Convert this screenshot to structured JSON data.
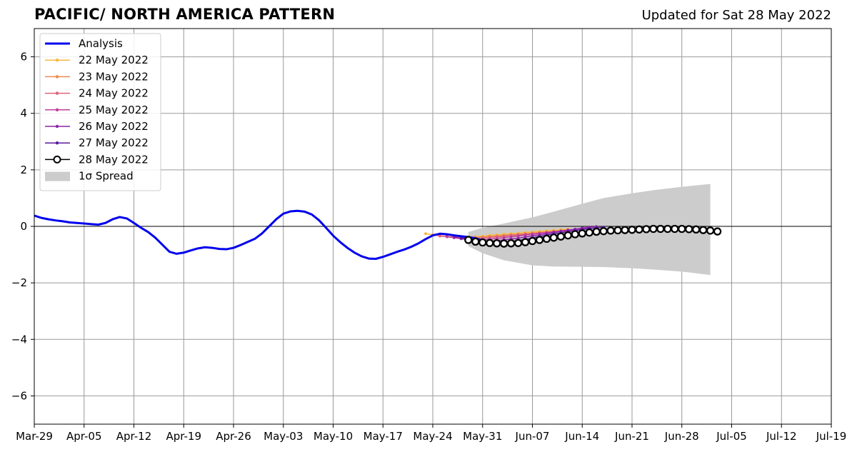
{
  "header": {
    "title": "PACIFIC/ NORTH AMERICA PATTERN",
    "updated": "Updated for Sat 28 May 2022"
  },
  "chart_data": {
    "type": "line",
    "title": "PACIFIC/ NORTH AMERICA PATTERN",
    "xlabel": "",
    "ylabel": "",
    "x_tick_labels": [
      "Mar-29",
      "Apr-05",
      "Apr-12",
      "Apr-19",
      "Apr-26",
      "May-03",
      "May-10",
      "May-17",
      "May-24",
      "May-31",
      "Jun-07",
      "Jun-14",
      "Jun-21",
      "Jun-28",
      "Jul-05",
      "Jul-12",
      "Jul-19"
    ],
    "y_ticks": [
      6,
      4,
      2,
      0,
      -2,
      -4,
      -6
    ],
    "y_tick_labels": [
      "6",
      "4",
      "2",
      "0",
      "−2",
      "−4",
      "−6"
    ],
    "xlim": [
      "2022-03-29",
      "2022-07-19"
    ],
    "ylim": [
      -7,
      7
    ],
    "grid": true,
    "legend_position": "top-left",
    "analysis": {
      "name": "Analysis",
      "color": "#0000ee",
      "start": "2022-03-29",
      "values": [
        0.38,
        0.3,
        0.25,
        0.21,
        0.18,
        0.14,
        0.12,
        0.1,
        0.08,
        0.06,
        0.12,
        0.25,
        0.33,
        0.28,
        0.12,
        -0.05,
        -0.2,
        -0.4,
        -0.65,
        -0.9,
        -0.97,
        -0.93,
        -0.85,
        -0.78,
        -0.74,
        -0.76,
        -0.8,
        -0.81,
        -0.76,
        -0.66,
        -0.55,
        -0.44,
        -0.25,
        0.0,
        0.25,
        0.45,
        0.53,
        0.55,
        0.52,
        0.42,
        0.22,
        -0.05,
        -0.33,
        -0.56,
        -0.76,
        -0.93,
        -1.06,
        -1.14,
        -1.15,
        -1.08,
        -0.99,
        -0.9,
        -0.82,
        -0.72,
        -0.6,
        -0.45,
        -0.32,
        -0.26,
        -0.28,
        -0.32,
        -0.35,
        -0.38,
        -0.42,
        -0.5,
        -0.62
      ]
    },
    "forecasts": [
      {
        "name": "22 May 2022",
        "color": "#f6b93b",
        "start": "2022-05-23",
        "values": [
          -0.26,
          -0.3,
          -0.34,
          -0.36,
          -0.37,
          -0.38,
          -0.38,
          -0.37,
          -0.35,
          -0.32,
          -0.3,
          -0.28,
          -0.26,
          -0.24,
          -0.22,
          -0.2,
          -0.18,
          -0.16,
          -0.14,
          -0.12,
          -0.1
        ]
      },
      {
        "name": "23 May 2022",
        "color": "#f0894f",
        "start": "2022-05-24",
        "values": [
          -0.3,
          -0.33,
          -0.36,
          -0.38,
          -0.39,
          -0.4,
          -0.39,
          -0.38,
          -0.36,
          -0.34,
          -0.32,
          -0.3,
          -0.28,
          -0.26,
          -0.24,
          -0.22,
          -0.2,
          -0.18,
          -0.16,
          -0.14,
          -0.12
        ]
      },
      {
        "name": "24 May 2022",
        "color": "#e0607e",
        "start": "2022-05-25",
        "values": [
          -0.34,
          -0.37,
          -0.4,
          -0.42,
          -0.43,
          -0.42,
          -0.41,
          -0.39,
          -0.37,
          -0.35,
          -0.32,
          -0.3,
          -0.28,
          -0.26,
          -0.24,
          -0.22,
          -0.2,
          -0.18,
          -0.16,
          -0.14,
          -0.12
        ]
      },
      {
        "name": "25 May 2022",
        "color": "#c13e9c",
        "start": "2022-05-26",
        "values": [
          -0.36,
          -0.4,
          -0.44,
          -0.47,
          -0.48,
          -0.47,
          -0.45,
          -0.43,
          -0.4,
          -0.37,
          -0.34,
          -0.31,
          -0.28,
          -0.25,
          -0.22,
          -0.19,
          -0.16,
          -0.13,
          -0.1,
          -0.08,
          -0.06
        ]
      },
      {
        "name": "26 May 2022",
        "color": "#8e24aa",
        "start": "2022-05-27",
        "values": [
          -0.38,
          -0.43,
          -0.48,
          -0.52,
          -0.54,
          -0.53,
          -0.51,
          -0.48,
          -0.45,
          -0.42,
          -0.38,
          -0.34,
          -0.3,
          -0.26,
          -0.22,
          -0.18,
          -0.14,
          -0.1,
          -0.06,
          -0.03,
          -0.01
        ]
      },
      {
        "name": "27 May 2022",
        "color": "#5a1a9e",
        "start": "2022-05-28",
        "values": [
          -0.4,
          -0.46,
          -0.52,
          -0.57,
          -0.59,
          -0.59,
          -0.57,
          -0.54,
          -0.5,
          -0.46,
          -0.41,
          -0.36,
          -0.31,
          -0.27,
          -0.23,
          -0.19,
          -0.15,
          -0.11,
          -0.08,
          -0.05,
          -0.03
        ]
      },
      {
        "name": "28 May 2022",
        "color": "#000000",
        "start": "2022-05-29",
        "marker": "hollow-circle",
        "values": [
          -0.48,
          -0.54,
          -0.57,
          -0.59,
          -0.6,
          -0.61,
          -0.6,
          -0.59,
          -0.56,
          -0.52,
          -0.48,
          -0.44,
          -0.4,
          -0.36,
          -0.32,
          -0.28,
          -0.25,
          -0.22,
          -0.19,
          -0.17,
          -0.15,
          -0.14,
          -0.13,
          -0.12,
          -0.11,
          -0.1,
          -0.09,
          -0.09,
          -0.09,
          -0.09,
          -0.09,
          -0.1,
          -0.11,
          -0.13,
          -0.15,
          -0.18
        ]
      }
    ],
    "spread": {
      "name": "1σ Spread",
      "color": "#cccccc",
      "dates": [
        "2022-05-29",
        "2022-05-31",
        "2022-06-03",
        "2022-06-07",
        "2022-06-10",
        "2022-06-14",
        "2022-06-17",
        "2022-06-21",
        "2022-06-24",
        "2022-06-28",
        "2022-07-02"
      ],
      "upper": [
        -0.2,
        -0.05,
        0.1,
        0.32,
        0.52,
        0.8,
        1.0,
        1.17,
        1.28,
        1.4,
        1.5
      ],
      "lower": [
        -0.7,
        -0.95,
        -1.2,
        -1.38,
        -1.42,
        -1.43,
        -1.44,
        -1.48,
        -1.53,
        -1.6,
        -1.72
      ]
    }
  },
  "legend": {
    "items": [
      "Analysis",
      "22 May 2022",
      "23 May 2022",
      "24 May 2022",
      "25 May 2022",
      "26 May 2022",
      "27 May 2022",
      "28 May 2022",
      "1σ Spread"
    ]
  }
}
